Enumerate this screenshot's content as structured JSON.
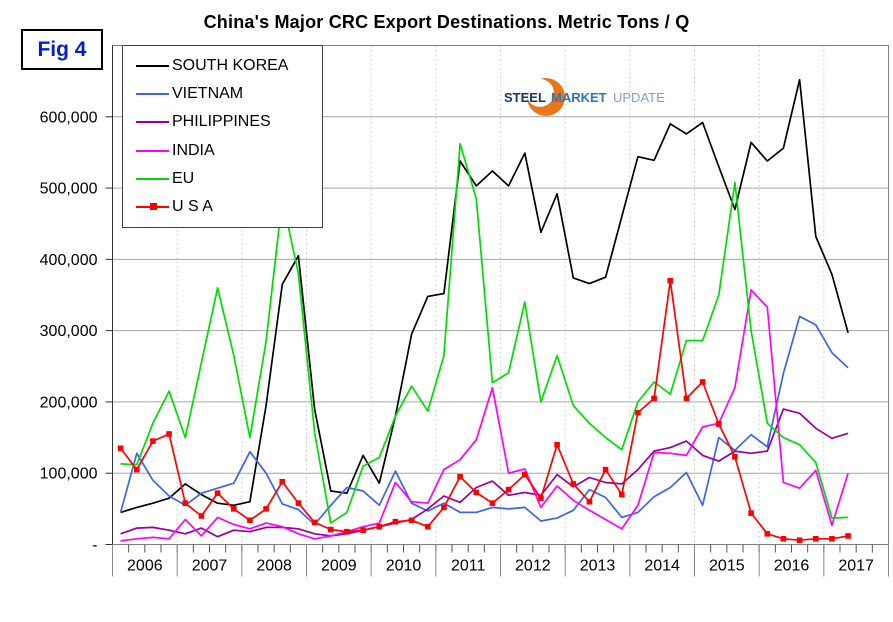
{
  "figure_label": "Fig 4",
  "figure_label_color": "#0022CC",
  "logo": {
    "steel": "STEEL",
    "market": "MARKET",
    "update": "UPDATE",
    "steel_color": "#17365D",
    "market_color": "#2E74B5",
    "update_color": "#7F9FC6",
    "crescent_color": "#E8761B"
  },
  "chart_data": {
    "type": "line",
    "title": "China's Major CRC Export Destinations. Metric Tons / Q",
    "x_start": "2006 Q1",
    "x_end": "2017 Q2",
    "quarters_per_year": 4,
    "x_year_labels": [
      "2006",
      "2007",
      "2008",
      "2009",
      "2010",
      "2011",
      "2012",
      "2013",
      "2014",
      "2015",
      "2016",
      "2017"
    ],
    "ylim": [
      0,
      700000
    ],
    "grid": {
      "horizontal": true,
      "vertical_year_dotted": true
    },
    "legend_position": "top-left",
    "y_ticks": [
      {
        "label": "-",
        "value": 0
      },
      {
        "label": "100,000",
        "value": 100000
      },
      {
        "label": "200,000",
        "value": 200000
      },
      {
        "label": "300,000",
        "value": 300000
      },
      {
        "label": "400,000",
        "value": 400000
      },
      {
        "label": "500,000",
        "value": 500000
      },
      {
        "label": "600,000",
        "value": 600000
      }
    ],
    "series": [
      {
        "name": "SOUTH KOREA",
        "color": "#000000",
        "marker": "none",
        "values": [
          45000,
          52000,
          58000,
          65000,
          85000,
          70000,
          58000,
          55000,
          60000,
          195000,
          365000,
          405000,
          190000,
          75000,
          72000,
          125000,
          86000,
          180000,
          295000,
          348000,
          352000,
          538000,
          503000,
          524000,
          503000,
          549000,
          438000,
          492000,
          374000,
          366000,
          375000,
          460000,
          544000,
          539000,
          590000,
          576000,
          592000,
          530000,
          470000,
          564000,
          538000,
          556000,
          652000,
          432000,
          379000,
          297000
        ]
      },
      {
        "name": "VIETNAM",
        "color": "#3D64E6",
        "marker": "none",
        "values": [
          45000,
          128000,
          90000,
          68000,
          55000,
          72000,
          79000,
          86000,
          130000,
          100000,
          57000,
          49000,
          28000,
          55000,
          80000,
          75000,
          55000,
          103000,
          58000,
          47000,
          58000,
          45000,
          45000,
          52000,
          50000,
          52000,
          33000,
          37000,
          48000,
          77000,
          66000,
          38000,
          45000,
          67000,
          80000,
          101000,
          55000,
          150000,
          132000,
          154000,
          137000,
          240000,
          320000,
          308000,
          269000,
          248000
        ]
      },
      {
        "name": "PHILIPPINES",
        "color": "#990099",
        "marker": "none",
        "values": [
          15000,
          23000,
          24000,
          20000,
          15000,
          23000,
          11000,
          20000,
          18000,
          24000,
          24000,
          22000,
          15000,
          12000,
          15000,
          20000,
          25000,
          30000,
          35000,
          50000,
          68000,
          59000,
          80000,
          89000,
          69000,
          73000,
          69000,
          98000,
          81000,
          94000,
          87000,
          85000,
          105000,
          131000,
          136000,
          145000,
          125000,
          117000,
          131000,
          128000,
          131000,
          190000,
          184000,
          163000,
          149000,
          156000
        ]
      },
      {
        "name": "INDIA",
        "color": "#FF00FF",
        "marker": "none",
        "values": [
          5000,
          8000,
          10000,
          8000,
          35000,
          12000,
          38000,
          28000,
          22000,
          30000,
          25000,
          15000,
          8000,
          12000,
          18000,
          25000,
          30000,
          87000,
          60000,
          58000,
          105000,
          119000,
          147000,
          220000,
          100000,
          106000,
          52000,
          82000,
          62000,
          48000,
          35000,
          22000,
          55000,
          129000,
          128000,
          125000,
          165000,
          170000,
          220000,
          357000,
          333000,
          87000,
          79000,
          104000,
          27000,
          100000
        ]
      },
      {
        "name": "EU",
        "color": "#00DC00",
        "marker": "none",
        "values": [
          113000,
          112000,
          170000,
          215000,
          150000,
          255000,
          360000,
          265000,
          150000,
          285000,
          485000,
          380000,
          157000,
          30000,
          45000,
          110000,
          122000,
          180000,
          222000,
          187000,
          265000,
          562000,
          485000,
          227000,
          241000,
          340000,
          200000,
          265000,
          195000,
          170000,
          150000,
          133000,
          200000,
          228000,
          211000,
          286000,
          286000,
          350000,
          508000,
          300000,
          170000,
          150000,
          140000,
          115000,
          37000,
          38000
        ]
      },
      {
        "name": "U S A",
        "color": "#FF0000",
        "marker": "square",
        "values": [
          135000,
          105000,
          145000,
          155000,
          58000,
          40000,
          72000,
          50000,
          34000,
          50000,
          88000,
          58000,
          31000,
          21000,
          18000,
          20000,
          25000,
          32000,
          34000,
          25000,
          52000,
          95000,
          73000,
          58000,
          77000,
          98000,
          65000,
          140000,
          85000,
          60000,
          105000,
          70000,
          185000,
          205000,
          370000,
          205000,
          228000,
          169000,
          123000,
          44000,
          15000,
          8000,
          6000,
          8000,
          8000,
          12000
        ]
      }
    ]
  }
}
